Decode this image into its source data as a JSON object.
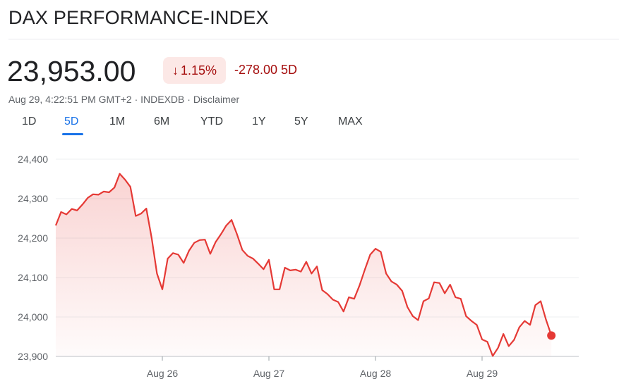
{
  "header": {
    "title": "DAX PERFORMANCE-INDEX",
    "price": "23,953.00",
    "change_pct": "1.15%",
    "change_abs": "-278.00 5D",
    "meta": "Aug 29, 4:22:51 PM GMT+2 · INDEXDB · Disclaimer"
  },
  "colors": {
    "line": "#e53935",
    "negative": "#a50e0e",
    "accent": "#1a73e8"
  },
  "tabs": [
    "1D",
    "5D",
    "1M",
    "6M",
    "YTD",
    "1Y",
    "5Y",
    "MAX"
  ],
  "active_tab": "5D",
  "chart_data": {
    "type": "area",
    "categories": [
      "Aug 26",
      "Aug 27",
      "Aug 28",
      "Aug 29"
    ],
    "yticks": [
      "24,400",
      "24,300",
      "24,200",
      "24,100",
      "24,000",
      "23,900"
    ],
    "ylim": [
      23900,
      24400
    ],
    "grid": true,
    "x": [
      0.0,
      0.05,
      0.1,
      0.15,
      0.2,
      0.25,
      0.3,
      0.35,
      0.4,
      0.45,
      0.5,
      0.55,
      0.6,
      0.65,
      0.7,
      0.75,
      0.8,
      0.85,
      0.9,
      0.95,
      1.0,
      1.05,
      1.1,
      1.15,
      1.2,
      1.25,
      1.3,
      1.35,
      1.4,
      1.45,
      1.5,
      1.55,
      1.6,
      1.65,
      1.7,
      1.75,
      1.8,
      1.85,
      1.9,
      1.95,
      2.0,
      2.05,
      2.1,
      2.15,
      2.2,
      2.25,
      2.3,
      2.35,
      2.4,
      2.45,
      2.5,
      2.55,
      2.6,
      2.65,
      2.7,
      2.75,
      2.8,
      2.85,
      2.9,
      2.95,
      3.0,
      3.05,
      3.1,
      3.15,
      3.2,
      3.25,
      3.3,
      3.35,
      3.4,
      3.45,
      3.5,
      3.55,
      3.6,
      3.65,
      3.7,
      3.75,
      3.8,
      3.85,
      3.9,
      3.95,
      4.0,
      4.05,
      4.1,
      4.15,
      4.2,
      4.25,
      4.3,
      4.35,
      4.4,
      4.45,
      4.5,
      4.55,
      4.6,
      4.65
    ],
    "values": [
      24232,
      24266,
      24260,
      24274,
      24270,
      24285,
      24302,
      24311,
      24310,
      24318,
      24316,
      24328,
      24363,
      24348,
      24330,
      24256,
      24262,
      24275,
      24200,
      24110,
      24070,
      24148,
      24162,
      24158,
      24137,
      24168,
      24188,
      24195,
      24196,
      24160,
      24190,
      24210,
      24232,
      24246,
      24210,
      24170,
      24155,
      24148,
      24135,
      24121,
      24145,
      24070,
      24070,
      24125,
      24118,
      24120,
      24115,
      24140,
      24110,
      24128,
      24068,
      24058,
      24044,
      24038,
      24014,
      24050,
      24046,
      24080,
      24120,
      24158,
      24173,
      24165,
      24110,
      24090,
      24082,
      24066,
      24025,
      24002,
      23992,
      24040,
      24047,
      24088,
      24086,
      24060,
      24082,
      24050,
      24046,
      24002,
      23990,
      23980,
      23943,
      23937,
      23901,
      23922,
      23957,
      23926,
      23942,
      23974,
      23990,
      23980,
      24030,
      24040,
      23993,
      23953
    ]
  }
}
